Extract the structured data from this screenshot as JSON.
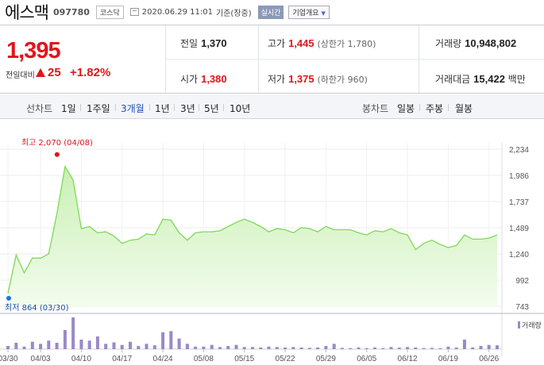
{
  "header": {
    "stock_name": "에스맥",
    "stock_code": "097780",
    "market": "코스닥",
    "datetime": "2020.06.29 11:01",
    "basis": "기준(장중)",
    "realtime_btn": "실시간",
    "company_btn": "기업개요"
  },
  "price": {
    "current": "1,395",
    "compare_label": "전일대비",
    "change": "25",
    "change_pct": "+1.82%"
  },
  "quote": {
    "prev_label": "전일",
    "prev_value": "1,370",
    "high_label": "고가",
    "high_value": "1,445",
    "upper_limit": "(상한가 1,780)",
    "volume_label": "거래량",
    "volume_value": "10,948,802",
    "open_label": "시가",
    "open_value": "1,380",
    "low_label": "저가",
    "low_value": "1,375",
    "lower_limit": "(하한가 960)",
    "amount_label": "거래대금",
    "amount_value": "15,422",
    "amount_unit": "백만"
  },
  "tabs": {
    "line_chart_label": "선차트",
    "periods": [
      "1일",
      "1주일",
      "3개월",
      "1년",
      "3년",
      "5년",
      "10년"
    ],
    "selected_period": "3개월",
    "candle_chart_label": "봉차트",
    "candle_periods": [
      "일봉",
      "주봉",
      "월봉"
    ]
  },
  "colors": {
    "up": "#e2141c",
    "selected_tab": "#1f4fb5",
    "area_stroke": "#7ed957",
    "volume_bar": "#9b88c8"
  },
  "chart_data": {
    "type": "area",
    "y_ticks": [
      "2,234",
      "1,986",
      "1,737",
      "1,489",
      "1,240",
      "992",
      "743"
    ],
    "ylim": [
      743,
      2234
    ],
    "x_ticks": [
      "03/30",
      "04/03",
      "04/10",
      "04/17",
      "04/24",
      "05/08",
      "05/15",
      "05/22",
      "05/29",
      "06/05",
      "06/12",
      "06/19",
      "06/26"
    ],
    "max_label": "최고 2,070 (04/08)",
    "min_label": "최저 864 (03/30)",
    "prices": [
      864,
      1230,
      1060,
      1200,
      1200,
      1240,
      1620,
      2070,
      1940,
      1480,
      1500,
      1440,
      1450,
      1410,
      1340,
      1370,
      1380,
      1430,
      1420,
      1570,
      1560,
      1440,
      1370,
      1440,
      1450,
      1450,
      1460,
      1500,
      1540,
      1570,
      1540,
      1500,
      1450,
      1480,
      1470,
      1440,
      1490,
      1480,
      1450,
      1500,
      1470,
      1470,
      1470,
      1440,
      1420,
      1460,
      1450,
      1480,
      1440,
      1420,
      1280,
      1340,
      1370,
      1330,
      1300,
      1320,
      1420,
      1380,
      1380,
      1390,
      1420
    ],
    "volume_legend": "거래량",
    "volumes": [
      1.5,
      3.0,
      1.2,
      3.5,
      2.5,
      4.0,
      3.0,
      9.0,
      15.0,
      4.5,
      4.0,
      6.0,
      2.5,
      3.2,
      2.0,
      3.5,
      1.5,
      2.5,
      1.8,
      8.0,
      8.5,
      5.0,
      2.5,
      1.2,
      1.2,
      2.0,
      1.0,
      1.5,
      2.0,
      1.0,
      1.0,
      0.8,
      1.2,
      1.0,
      0.8,
      1.0,
      0.8,
      0.6,
      0.8,
      1.5,
      2.5,
      0.6,
      0.5,
      0.8,
      0.5,
      0.8,
      0.5,
      1.0,
      0.7,
      1.0,
      0.8,
      0.5,
      0.6,
      0.4,
      1.2,
      0.8,
      4.5,
      0.8,
      1.5,
      2.0,
      1.8
    ]
  }
}
